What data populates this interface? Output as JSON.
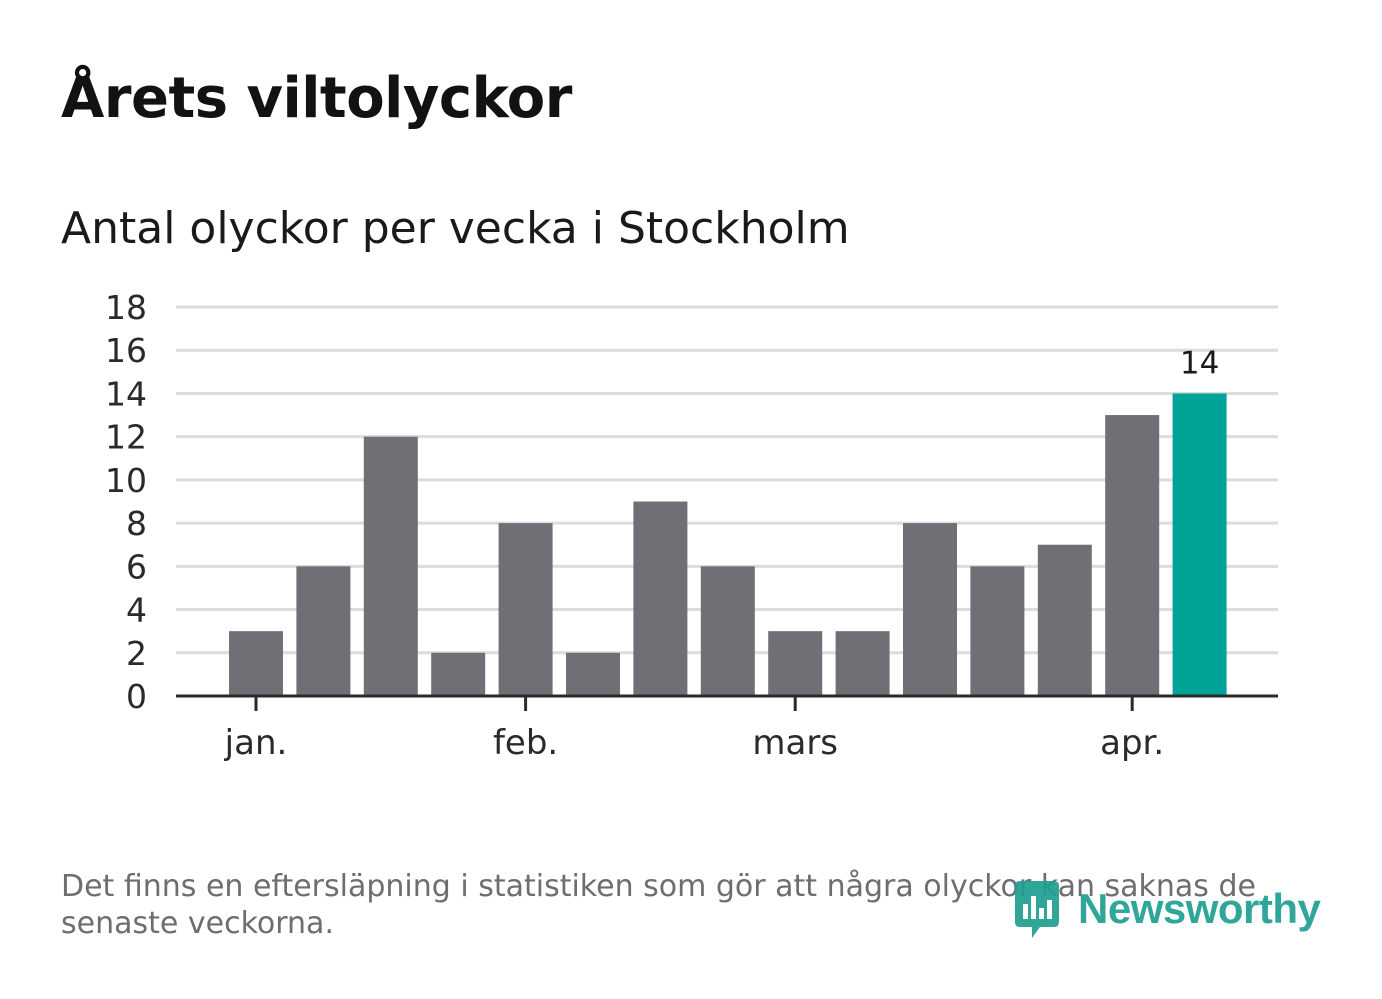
{
  "title": "Årets viltolyckor",
  "subtitle": "Antal olyckor per vecka i Stockholm",
  "footnote": "Det finns en eftersläpning i statistiken som gör att några olyckor kan saknas de senaste veckorna.",
  "brand": {
    "name": "Newsworthy",
    "color": "#1f9e92"
  },
  "colors": {
    "bar": "#706f75",
    "highlight": "#00a398",
    "grid": "#dcdcdc",
    "axis": "#2b2b2b"
  },
  "chart_data": {
    "type": "bar",
    "title": "Antal olyckor per vecka i Stockholm",
    "xlabel": "",
    "ylabel": "",
    "ylim": [
      0,
      18
    ],
    "yticks": [
      0,
      2,
      4,
      6,
      8,
      10,
      12,
      14,
      16,
      18
    ],
    "grid": true,
    "values": [
      3,
      6,
      12,
      2,
      8,
      2,
      9,
      6,
      3,
      3,
      8,
      6,
      7,
      13,
      14
    ],
    "highlight_index": 14,
    "highlight_label": "14",
    "month_ticks": [
      {
        "label": "jan.",
        "week_position": 0
      },
      {
        "label": "feb.",
        "week_position": 4
      },
      {
        "label": "mars",
        "week_position": 8
      },
      {
        "label": "apr.",
        "week_position": 13
      }
    ]
  }
}
